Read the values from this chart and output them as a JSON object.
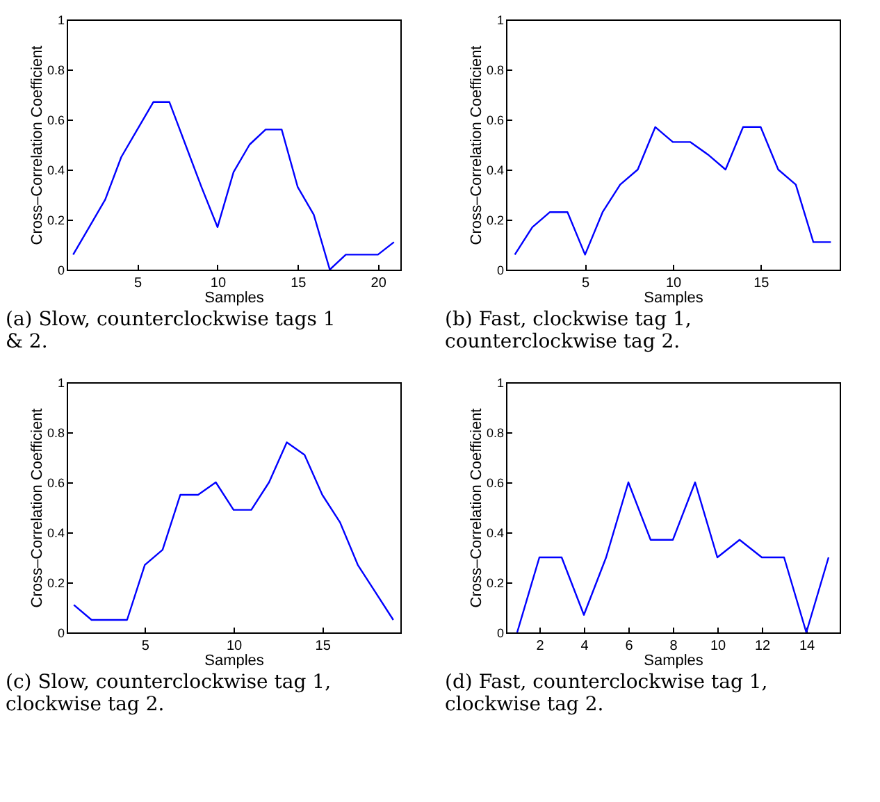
{
  "chart_data": [
    {
      "type": "line",
      "title": "(a) Slow, counterclockwise tags 1 & 2.",
      "xlabel": "Samples",
      "ylabel": "Cross–Correlation Coefficient",
      "x": [
        1,
        2,
        3,
        4,
        5,
        6,
        7,
        8,
        9,
        10,
        11,
        12,
        13,
        14,
        15,
        16,
        17,
        18,
        19,
        20,
        21
      ],
      "series": [
        {
          "color": "#0000ff",
          "values": [
            0.06,
            0.17,
            0.28,
            0.45,
            0.56,
            0.67,
            0.67,
            0.5,
            0.33,
            0.17,
            0.39,
            0.5,
            0.56,
            0.56,
            0.33,
            0.22,
            0,
            0.06,
            0.06,
            0.06,
            0.11
          ]
        }
      ],
      "xlim": [
        0.6,
        21.4
      ],
      "xticks": [
        5,
        10,
        15,
        20
      ],
      "ylim": [
        0,
        1
      ],
      "yticks": [
        0,
        0.2,
        0.4,
        0.6,
        0.8,
        1
      ]
    },
    {
      "type": "line",
      "title": "(b) Fast, clockwise tag 1, counterclockwise tag 2.",
      "xlabel": "Samples",
      "ylabel": "Cross–Correlation Coefficient",
      "x": [
        1,
        2,
        3,
        4,
        5,
        6,
        7,
        8,
        9,
        10,
        11,
        12,
        13,
        14,
        15,
        16,
        17,
        18,
        19
      ],
      "series": [
        {
          "color": "#0000ff",
          "values": [
            0.06,
            0.17,
            0.23,
            0.23,
            0.06,
            0.23,
            0.34,
            0.4,
            0.57,
            0.51,
            0.51,
            0.46,
            0.4,
            0.57,
            0.57,
            0.4,
            0.34,
            0.11,
            0.11
          ]
        }
      ],
      "xlim": [
        0.5,
        19.5
      ],
      "xticks": [
        5,
        10,
        15
      ],
      "ylim": [
        0,
        1
      ],
      "yticks": [
        0,
        0.2,
        0.4,
        0.6,
        0.8,
        1
      ]
    },
    {
      "type": "line",
      "title": "(c) Slow, counterclockwise tag 1, clockwise tag 2.",
      "xlabel": "Samples",
      "ylabel": "Cross–Correlation Coefficient",
      "x": [
        1,
        2,
        3,
        4,
        5,
        6,
        7,
        8,
        9,
        10,
        11,
        12,
        13,
        14,
        15,
        16,
        17,
        18,
        19
      ],
      "series": [
        {
          "color": "#0000ff",
          "values": [
            0.11,
            0.05,
            0.05,
            0.05,
            0.27,
            0.33,
            0.55,
            0.55,
            0.6,
            0.49,
            0.49,
            0.6,
            0.76,
            0.71,
            0.55,
            0.44,
            0.27,
            0.16,
            0.05
          ]
        }
      ],
      "xlim": [
        0.6,
        19.4
      ],
      "xticks": [
        5,
        10,
        15
      ],
      "ylim": [
        0,
        1
      ],
      "yticks": [
        0,
        0.2,
        0.4,
        0.6,
        0.8,
        1
      ]
    },
    {
      "type": "line",
      "title": "(d) Fast, counterclockwise tag 1, clockwise tag 2.",
      "xlabel": "Samples",
      "ylabel": "Cross–Correlation Coefficient",
      "x": [
        1,
        2,
        3,
        4,
        5,
        6,
        7,
        8,
        9,
        10,
        11,
        12,
        13,
        14,
        15
      ],
      "series": [
        {
          "color": "#0000ff",
          "values": [
            0,
            0.3,
            0.3,
            0.07,
            0.3,
            0.6,
            0.37,
            0.37,
            0.6,
            0.3,
            0.37,
            0.3,
            0.3,
            0,
            0.3
          ]
        }
      ],
      "xlim": [
        0.5,
        15.5
      ],
      "xticks": [
        2,
        4,
        6,
        8,
        10,
        12,
        14
      ],
      "ylim": [
        0,
        1
      ],
      "yticks": [
        0,
        0.2,
        0.4,
        0.6,
        0.8,
        1
      ]
    }
  ]
}
